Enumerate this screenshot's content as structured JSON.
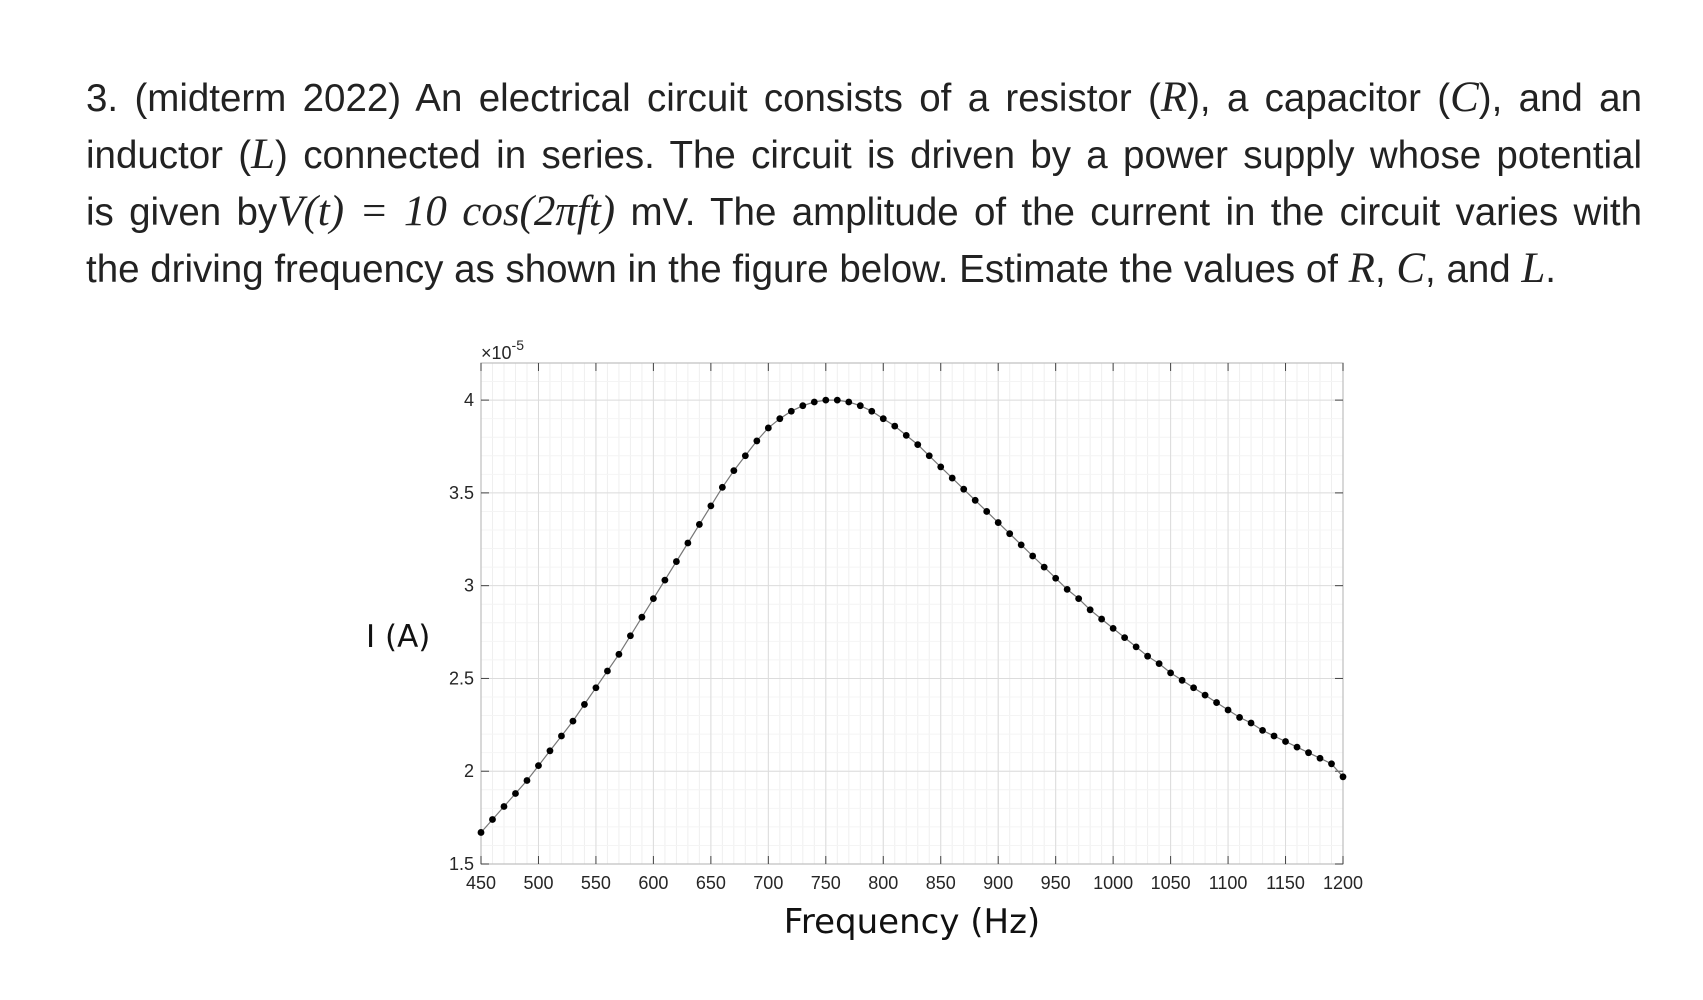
{
  "problem": {
    "line1_prefix": "3. (midterm 2022) An electrical circuit consists of a resistor (",
    "var_R": "R",
    "line1_mid": "), a capacitor (",
    "var_C": "C",
    "line1_end": "), and an",
    "line2_prefix": "inductor (",
    "var_L": "L",
    "line2_end": ") connected in series. The circuit is driven by a power supply whose potential",
    "line3_prefix": "is given by",
    "equation": "V(t) = 10 cos(2πft)",
    "line3_end": " mV. The amplitude of the current in the circuit varies with",
    "line4_prefix": "the driving frequency as shown in the figure below. Estimate the values of ",
    "line4_sep1": ", ",
    "line4_sep2": ", and ",
    "line4_end": "."
  },
  "chart_data": {
    "type": "scatter",
    "xlabel": "Frequency (Hz)",
    "ylabel": "I (A)",
    "y_exponent_label": "×10",
    "y_exponent": "-5",
    "xlim": [
      450,
      1200
    ],
    "ylim": [
      1.5,
      4.2
    ],
    "xticks": [
      450,
      500,
      550,
      600,
      650,
      700,
      750,
      800,
      850,
      900,
      950,
      1000,
      1050,
      1100,
      1150,
      1200
    ],
    "yticks": [
      1.5,
      2,
      2.5,
      3,
      3.5,
      4
    ],
    "ytick_labels": [
      "1.5",
      "2",
      "2.5",
      "3",
      "3.5",
      "4"
    ],
    "grid": true,
    "marker_color": "#000000",
    "line_color": "#777777",
    "series": [
      {
        "x": [
          450,
          460,
          470,
          480,
          490,
          500,
          510,
          520,
          530,
          540,
          550,
          560,
          570,
          580,
          590,
          600,
          610,
          620,
          630,
          640,
          650,
          660,
          670,
          680,
          690,
          700,
          710,
          720,
          730,
          740,
          750,
          760,
          770,
          780,
          790,
          800,
          810,
          820,
          830,
          840,
          850,
          860,
          870,
          880,
          890,
          900,
          910,
          920,
          930,
          940,
          950,
          960,
          970,
          980,
          990,
          1000,
          1010,
          1020,
          1030,
          1040,
          1050,
          1060,
          1070,
          1080,
          1090,
          1100,
          1110,
          1120,
          1130,
          1140,
          1150,
          1160,
          1170,
          1180,
          1190,
          1200
        ],
        "y": [
          1.67,
          1.74,
          1.81,
          1.88,
          1.95,
          2.03,
          2.11,
          2.19,
          2.27,
          2.36,
          2.45,
          2.54,
          2.63,
          2.73,
          2.83,
          2.93,
          3.03,
          3.13,
          3.23,
          3.33,
          3.43,
          3.53,
          3.62,
          3.7,
          3.78,
          3.85,
          3.9,
          3.94,
          3.97,
          3.99,
          4.0,
          4.0,
          3.99,
          3.97,
          3.94,
          3.9,
          3.86,
          3.81,
          3.76,
          3.7,
          3.64,
          3.58,
          3.52,
          3.46,
          3.4,
          3.34,
          3.28,
          3.22,
          3.16,
          3.1,
          3.04,
          2.98,
          2.93,
          2.87,
          2.82,
          2.77,
          2.72,
          2.67,
          2.62,
          2.58,
          2.53,
          2.49,
          2.45,
          2.41,
          2.37,
          2.33,
          2.29,
          2.26,
          2.22,
          2.19,
          2.16,
          2.13,
          2.1,
          2.07,
          2.04,
          1.97
        ]
      }
    ]
  }
}
